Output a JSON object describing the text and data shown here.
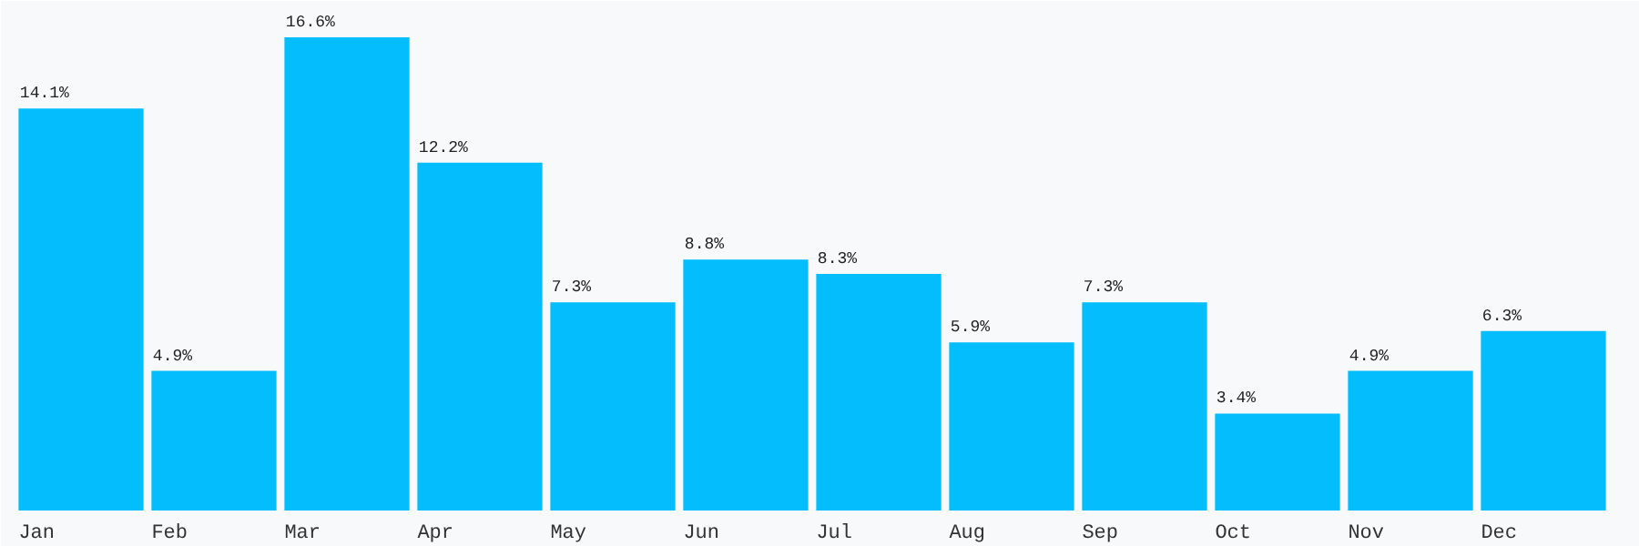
{
  "chart_data": {
    "type": "bar",
    "categories": [
      "Jan",
      "Feb",
      "Mar",
      "Apr",
      "May",
      "Jun",
      "Jul",
      "Aug",
      "Sep",
      "Oct",
      "Nov",
      "Dec"
    ],
    "values": [
      14.1,
      4.9,
      16.6,
      12.2,
      7.3,
      8.8,
      8.3,
      5.9,
      7.3,
      3.4,
      4.9,
      6.3
    ],
    "value_labels": [
      "14.1%",
      "4.9%",
      "16.6%",
      "12.2%",
      "7.3%",
      "8.8%",
      "8.3%",
      "5.9%",
      "7.3%",
      "3.4%",
      "4.9%",
      "6.3%"
    ],
    "color": "#03bdfc",
    "grid": false
  }
}
